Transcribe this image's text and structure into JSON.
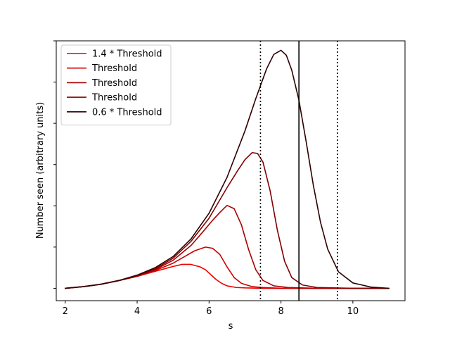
{
  "chart_data": {
    "type": "line",
    "title": "",
    "xlabel": "s",
    "ylabel": "Number seen (arbitrary units)",
    "xlim": [
      1.75,
      11.45
    ],
    "ylim": [
      -0.3,
      6.0
    ],
    "xticks": [
      2,
      4,
      6,
      8,
      10
    ],
    "xtick_labels": [
      "2",
      "4",
      "6",
      "8",
      "10"
    ],
    "yticks": [
      0,
      1,
      2,
      3,
      4,
      5,
      6
    ],
    "ytick_labels": [
      "",
      "",
      "",
      "",
      "",
      "",
      ""
    ],
    "grid": false,
    "legend_position": "top-left",
    "series": [
      {
        "name": "1.4 * Threshold",
        "color": "#ee0000",
        "x": [
          2.0,
          2.5,
          3.0,
          3.5,
          4.0,
          4.5,
          5.0,
          5.25,
          5.5,
          5.75,
          5.9,
          6.05,
          6.2,
          6.35,
          6.5,
          6.75,
          7.0,
          7.5,
          8.0,
          9.0,
          10.0,
          11.0
        ],
        "y": [
          0.0,
          0.04,
          0.1,
          0.19,
          0.29,
          0.41,
          0.53,
          0.58,
          0.58,
          0.52,
          0.45,
          0.33,
          0.21,
          0.12,
          0.06,
          0.02,
          0.01,
          0.0,
          0.0,
          0.0,
          0.0,
          0.0
        ]
      },
      {
        "name": "Threshold",
        "color": "#cc0000",
        "x": [
          2.0,
          2.5,
          3.0,
          3.5,
          4.0,
          4.5,
          5.0,
          5.3,
          5.6,
          5.9,
          6.1,
          6.3,
          6.5,
          6.7,
          6.9,
          7.2,
          7.5,
          8.0,
          9.0,
          10.0,
          11.0
        ],
        "y": [
          0.0,
          0.04,
          0.1,
          0.19,
          0.29,
          0.43,
          0.61,
          0.76,
          0.91,
          1.0,
          0.97,
          0.82,
          0.52,
          0.26,
          0.12,
          0.04,
          0.02,
          0.0,
          0.0,
          0.0,
          0.0
        ]
      },
      {
        "name": "Threshold",
        "color": "#a80000",
        "x": [
          2.0,
          2.5,
          3.0,
          3.5,
          4.0,
          4.5,
          5.0,
          5.5,
          5.8,
          6.1,
          6.3,
          6.5,
          6.7,
          6.9,
          7.1,
          7.3,
          7.5,
          7.8,
          8.2,
          9.0,
          10.0,
          11.0
        ],
        "y": [
          0.0,
          0.04,
          0.1,
          0.19,
          0.3,
          0.45,
          0.68,
          1.04,
          1.34,
          1.65,
          1.84,
          2.01,
          1.93,
          1.54,
          0.94,
          0.45,
          0.19,
          0.06,
          0.02,
          0.0,
          0.0,
          0.0
        ]
      },
      {
        "name": "Threshold",
        "color": "#800000",
        "x": [
          2.0,
          2.5,
          3.0,
          3.5,
          4.0,
          4.5,
          5.0,
          5.5,
          6.0,
          6.5,
          6.8,
          7.0,
          7.2,
          7.35,
          7.5,
          7.7,
          7.9,
          8.1,
          8.3,
          8.6,
          9.0,
          10.0,
          11.0
        ],
        "y": [
          0.0,
          0.04,
          0.1,
          0.19,
          0.31,
          0.47,
          0.73,
          1.14,
          1.7,
          2.44,
          2.86,
          3.12,
          3.29,
          3.27,
          3.06,
          2.36,
          1.41,
          0.66,
          0.26,
          0.08,
          0.02,
          0.0,
          0.0
        ]
      },
      {
        "name": "0.6 * Threshold",
        "color": "#2e0000",
        "x": [
          2.0,
          2.5,
          3.0,
          3.5,
          4.0,
          4.5,
          5.0,
          5.5,
          6.0,
          6.5,
          7.0,
          7.3,
          7.6,
          7.8,
          8.0,
          8.15,
          8.3,
          8.5,
          8.7,
          8.9,
          9.1,
          9.3,
          9.6,
          10.0,
          10.5,
          11.0
        ],
        "y": [
          0.0,
          0.04,
          0.1,
          0.19,
          0.32,
          0.5,
          0.77,
          1.2,
          1.82,
          2.69,
          3.82,
          4.6,
          5.32,
          5.67,
          5.77,
          5.65,
          5.29,
          4.56,
          3.56,
          2.5,
          1.6,
          0.95,
          0.4,
          0.13,
          0.03,
          0.0
        ]
      }
    ],
    "vlines": [
      {
        "x": 7.43,
        "style": "dotted",
        "color": "#000000"
      },
      {
        "x": 8.5,
        "style": "solid",
        "color": "#000000"
      },
      {
        "x": 9.57,
        "style": "dotted",
        "color": "#000000"
      }
    ]
  }
}
